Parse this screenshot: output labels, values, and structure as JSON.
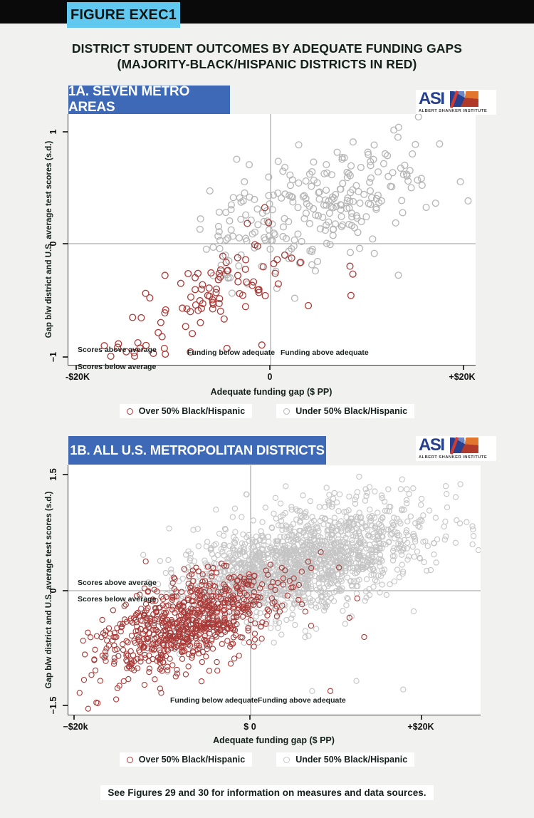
{
  "header": {
    "figure_tag": "FIGURE EXEC1"
  },
  "title": {
    "line1": "DISTRICT STUDENT OUTCOMES BY ADEQUATE FUNDING GAPS",
    "line2": "(MAJORITY-BLACK/HISPANIC DISTRICTS IN RED)"
  },
  "footer": {
    "note": "See Figures 29 and 30 for information on measures and data sources."
  },
  "colors": {
    "top_bar": "#0a0a0a",
    "figure_tag_bg": "#61c8f0",
    "panel_title_bg": "#3d69b7",
    "page_bg": "#f1f1f0",
    "red_series": "#a93b38",
    "gray_series_1a": "#b5b5b5",
    "gray_series_1b": "#c5c5c5",
    "reference_line": "#979797"
  },
  "chart_data": [
    {
      "id": "1a",
      "type": "scatter",
      "panel_title": "1A. SEVEN METRO AREAS",
      "logo_text": "ASI",
      "logo_caption": "ALBERT SHANKER INSTITUTE",
      "x_axis": {
        "label": "Adequate funding gap ($ PP)",
        "range_thousands": [
          -21,
          21
        ],
        "ticks": [
          {
            "value": -20,
            "label": "-$20K"
          },
          {
            "value": 0,
            "label": "0"
          },
          {
            "value": 20,
            "label": "+$20K"
          }
        ]
      },
      "y_axis": {
        "label": "Gap b/w district and U.S. average test scores (s.d.)",
        "range": [
          -1.08,
          1.15
        ],
        "ticks": [
          {
            "value": 1,
            "label": "1"
          },
          {
            "value": 0,
            "label": "0"
          },
          {
            "value": -1,
            "label": "−1"
          }
        ]
      },
      "annotations": {
        "scores_above": "Scores above average",
        "scores_below": "Scores below average",
        "funding_below": "Funding below adequate",
        "funding_above": "Funding above adequate"
      },
      "legend": [
        {
          "label": "Over 50% Black/Hispanic",
          "color": "#a93b38"
        },
        {
          "label": "Under 50% Black/Hispanic",
          "color": "#b5b5b5"
        }
      ],
      "marker": {
        "r": 4.4,
        "stroke_width": 1.3
      },
      "series": [
        {
          "name": "Under 50% Black/Hispanic",
          "color": "#b5b5b5",
          "n": 252,
          "seed": 101,
          "center": [
            4.9,
            0.34
          ],
          "sd": [
            5.9,
            0.31
          ],
          "corr": 0.55,
          "x_range": [
            -7.5,
            20.9
          ],
          "y_range": [
            -0.55,
            1.13
          ],
          "extra_points": [
            [
              -3.5,
              0.75
            ],
            [
              -2.7,
              0.55
            ],
            [
              19.6,
              0.55
            ],
            [
              20.4,
              0.38
            ],
            [
              -5.3,
              0.28
            ],
            [
              -4.4,
              0.05
            ],
            [
              13.2,
              -0.28
            ]
          ]
        },
        {
          "name": "Over 50% Black/Hispanic",
          "color": "#a93b38",
          "n": 86,
          "seed": 55,
          "center": [
            -7.1,
            -0.5
          ],
          "sd": [
            4.2,
            0.26
          ],
          "corr": 0.7,
          "x_range": [
            -17.5,
            3.2
          ],
          "y_range": [
            -1.02,
            0.3
          ],
          "extra_points": [
            [
              8.2,
              -0.2
            ],
            [
              8.5,
              -0.27
            ],
            [
              8.3,
              -0.46
            ],
            [
              -0.6,
              0.32
            ],
            [
              -2.4,
              0.18
            ],
            [
              3.9,
              -0.55
            ],
            [
              -16.5,
              -1.0
            ],
            [
              -15.8,
              -0.92
            ],
            [
              -14.9,
              -0.96
            ],
            [
              -13.7,
              -0.88
            ],
            [
              -11.6,
              -0.79
            ],
            [
              -4.5,
              -0.93
            ],
            [
              -0.9,
              -0.9
            ]
          ]
        }
      ]
    },
    {
      "id": "1b",
      "type": "scatter",
      "panel_title": "1B. ALL U.S. METROPOLITAN DISTRICTS",
      "logo_text": "ASI",
      "logo_caption": "ALBERT SHANKER INSTITUTE",
      "x_axis": {
        "label": "Adequate funding gap ($ PP)",
        "range_thousands": [
          -21,
          27
        ],
        "ticks": [
          {
            "value": -20,
            "label": "−$20k"
          },
          {
            "value": 0,
            "label": "$ 0"
          },
          {
            "value": 20,
            "label": "+$20K"
          }
        ]
      },
      "y_axis": {
        "label": "Gap b/w district and U.S. average test scores (s.d.)",
        "range": [
          -1.61,
          1.63
        ],
        "ticks": [
          {
            "value": 1.5,
            "label": "1.5"
          },
          {
            "value": 0,
            "label": "0"
          },
          {
            "value": -1.5,
            "label": "−1.5"
          }
        ]
      },
      "annotations": {
        "scores_above": "Scores above average",
        "scores_below": "Scores below average",
        "funding_below": "Funding below adequate",
        "funding_above": "Funding above adequate"
      },
      "legend": [
        {
          "label": "Over 50% Black/Hispanic",
          "color": "#a93b38"
        },
        {
          "label": "Under 50% Black/Hispanic",
          "color": "#c5c5c5"
        }
      ],
      "marker": {
        "r": 3.6,
        "stroke_width": 1.1
      },
      "series": [
        {
          "name": "Under 50% Black/Hispanic",
          "color": "#c5c5c5",
          "n": 1600,
          "seed": 7,
          "center": [
            5.6,
            0.38
          ],
          "sd": [
            7.0,
            0.37
          ],
          "corr": 0.52,
          "x_range": [
            -12.5,
            26.6
          ],
          "y_range": [
            -0.95,
            1.52
          ],
          "extra_points": [
            [
              24.2,
              1.38
            ],
            [
              25.6,
              0.6
            ],
            [
              7.1,
              -1.3
            ],
            [
              -9.6,
              -1.05
            ],
            [
              12.2,
              -1.17
            ],
            [
              17.6,
              -1.28
            ],
            [
              -0.5,
              1.25
            ],
            [
              -4.0,
              1.05
            ]
          ]
        },
        {
          "name": "Over 50% Black/Hispanic",
          "color": "#a93b38",
          "n": 760,
          "seed": 23,
          "center": [
            -7.6,
            -0.44
          ],
          "sd": [
            5.1,
            0.34
          ],
          "corr": 0.55,
          "x_range": [
            -20.2,
            8.8
          ],
          "y_range": [
            -1.53,
            0.42
          ],
          "extra_points": [
            [
              -12.1,
              0.38
            ],
            [
              8.1,
              0.5
            ],
            [
              10.2,
              0.3
            ],
            [
              12.3,
              -0.1
            ],
            [
              13.1,
              -0.6
            ],
            [
              9.2,
              -1.3
            ],
            [
              11.4,
              -0.35
            ],
            [
              -17.8,
              -1.45
            ]
          ]
        }
      ]
    }
  ]
}
